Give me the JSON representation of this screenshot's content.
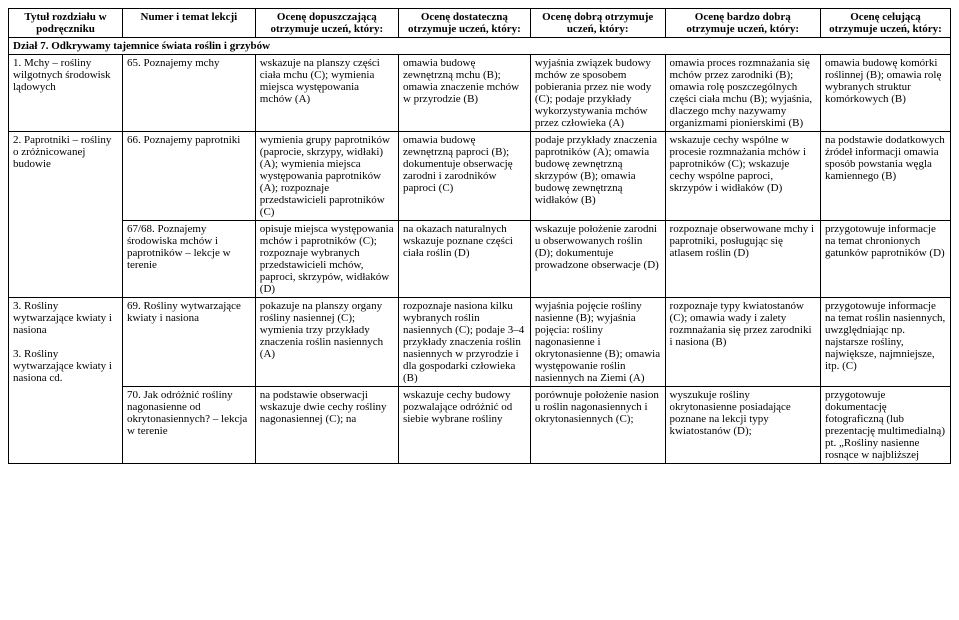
{
  "headers": {
    "col1": "Tytuł rozdziału w podręczniku",
    "col2": "Numer i temat lekcji",
    "col3": "Ocenę dopuszczającą otrzymuje uczeń, który:",
    "col4": "Ocenę dostateczną otrzymuje uczeń, który:",
    "col5": "Ocenę dobrą otrzymuje uczeń, który:",
    "col6": "Ocenę bardzo dobrą otrzymuje uczeń, który:",
    "col7": "Ocenę celującą otrzymuje uczeń, który:"
  },
  "section": "Dział 7. Odkrywamy tajemnice świata roślin i grzybów",
  "rows": [
    {
      "c1": "1. Mchy – rośliny wilgotnych środowisk lądowych",
      "c2": "65. Poznajemy mchy",
      "c3": "wskazuje na planszy części ciała mchu (C); wymienia miejsca występowania mchów (A)",
      "c4": "omawia budowę zewnętrzną mchu (B); omawia znaczenie mchów w przyrodzie (B)",
      "c5": "wyjaśnia związek budowy mchów ze sposobem pobierania przez nie wody (C); podaje przykłady wykorzystywania mchów przez człowieka (A)",
      "c6": "omawia proces rozmnażania się mchów przez zarodniki (B); omawia rolę poszczególnych części ciała mchu (B); wyjaśnia, dlaczego mchy nazywamy organizmami pionierskimi (B)",
      "c7": "omawia budowę komórki roślinnej (B); omawia rolę wybranych struktur komórkowych (B)"
    },
    {
      "c1": "2. Paprotniki – rośliny o zróżnicowanej budowie",
      "c2": "66. Poznajemy paprotniki",
      "c3": "wymienia grupy paprotników (paprocie, skrzypy, widłaki) (A); wymienia miejsca występowania paprotników (A); rozpoznaje przedstawicieli paprotników (C)",
      "c4": "omawia budowę zewnętrzną paproci (B); dokumentuje obserwację zarodni i zarodników paproci (C)",
      "c5": "podaje przykłady znaczenia paprotników (A); omawia budowę zewnętrzną skrzypów (B); omawia budowę zewnętrzną widłaków (B)",
      "c6": "wskazuje cechy wspólne w procesie rozmnażania mchów i paprotników (C); wskazuje cechy wspólne paproci, skrzypów i widłaków (D)",
      "c7": "na podstawie dodatkowych źródeł informacji omawia sposób powstania węgla kamiennego (B)"
    },
    {
      "c1": "",
      "c2": "67/68. Poznajemy środowiska mchów i paprotników – lekcje w terenie",
      "c3": "opisuje miejsca występowania mchów i paprotników (C); rozpoznaje wybranych przedstawicieli mchów, paproci, skrzypów, widłaków (D)",
      "c4": "na okazach naturalnych wskazuje poznane części ciała roślin (D)",
      "c5": "wskazuje położenie zarodni u obserwowanych roślin (D); dokumentuje prowadzone obserwacje (D)",
      "c6": "rozpoznaje obserwowane mchy i paprotniki, posługując się atlasem roślin (D)",
      "c7": "przygotowuje informacje na temat chronionych gatunków paprotników (D)"
    },
    {
      "c1": "3. Rośliny wytwarzające kwiaty i nasiona\n\n3. Rośliny wytwarzające kwiaty i nasiona cd.",
      "c2": "69. Rośliny wytwarzające kwiaty i nasiona",
      "c3": "pokazuje na planszy organy rośliny nasiennej (C); wymienia trzy przykłady znaczenia roślin nasiennych (A)",
      "c4": "rozpoznaje nasiona kilku wybranych roślin nasiennych (C); podaje 3–4 przykłady znaczenia roślin nasiennych w przyrodzie i dla gospodarki człowieka (B)",
      "c5": "wyjaśnia pojęcie rośliny nasienne (B); wyjaśnia pojęcia: rośliny nagonasienne i okrytonasienne (B); omawia występowanie roślin nasiennych na Ziemi (A)",
      "c6": "rozpoznaje typy kwiatostanów (C); omawia wady i zalety rozmnażania się przez zarodniki i nasiona (B)",
      "c7": "przygotowuje informacje na temat roślin nasiennych, uwzględniając np. najstarsze rośliny, największe, najmniejsze, itp. (C)"
    },
    {
      "c1": "",
      "c2": "70. Jak odróżnić rośliny nagonasienne od okrytonasiennych? – lekcja w terenie",
      "c3": " na podstawie obserwacji wskazuje dwie cechy rośliny nagonasiennej (C); na",
      "c4": "wskazuje cechy budowy pozwalające odróżnić od siebie wybrane rośliny",
      "c5": "porównuje położenie nasion u roślin nagonasiennych i okrytonasiennych (C);",
      "c6": "wyszukuje rośliny okrytonasienne posiadające poznane na lekcji typy kwiatostanów (D);",
      "c7": "przygotowuje dokumentację fotograficzną (lub prezentację multimedialną) pt. „Rośliny nasienne rosnące w najbliższej"
    }
  ]
}
